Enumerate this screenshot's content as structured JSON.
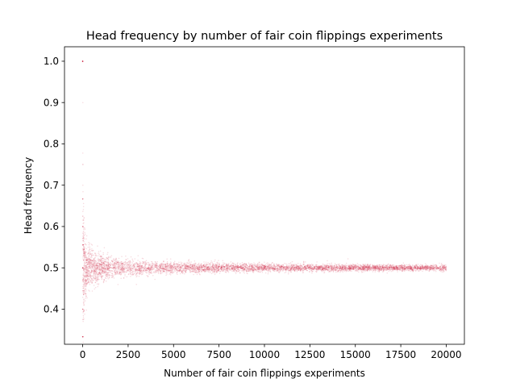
{
  "chart_data": {
    "type": "scatter",
    "title": "Head frequency by number of fair coin flippings experiments",
    "xlabel": "Number of fair coin flippings experiments",
    "ylabel": "Head frequency",
    "xlim": [
      -1000,
      21000
    ],
    "ylim": [
      0.315,
      1.035
    ],
    "xticks": [
      0,
      2500,
      5000,
      7500,
      10000,
      12500,
      15000,
      17500,
      20000
    ],
    "xtick_labels": [
      "0",
      "2500",
      "5000",
      "7500",
      "10000",
      "12500",
      "15000",
      "17500",
      "20000"
    ],
    "yticks": [
      0.4,
      0.5,
      0.6,
      0.7,
      0.8,
      0.9,
      1.0
    ],
    "ytick_labels": [
      "0.4",
      "0.5",
      "0.6",
      "0.7",
      "0.8",
      "0.9",
      "1.0"
    ],
    "grid": false,
    "point_color": "#c8102e",
    "point_opacity": 0.15,
    "series": [
      {
        "x_min": 1,
        "x_max": 20000,
        "probability": 0.5,
        "description_of_values": "head frequency after n fair coin flips, converging to 0.5"
      }
    ],
    "sample_points": {
      "x": [
        1,
        5,
        10,
        20,
        50,
        100,
        200,
        300,
        500,
        750,
        1000,
        1500,
        2000,
        3000,
        4000,
        5000,
        7500,
        10000,
        12500,
        15000,
        17500,
        20000
      ],
      "y": [
        1.0,
        0.6,
        0.7,
        0.45,
        0.58,
        0.44,
        0.57,
        0.48,
        0.53,
        0.47,
        0.52,
        0.49,
        0.51,
        0.495,
        0.505,
        0.498,
        0.503,
        0.499,
        0.501,
        0.4995,
        0.5005,
        0.4998
      ]
    }
  }
}
